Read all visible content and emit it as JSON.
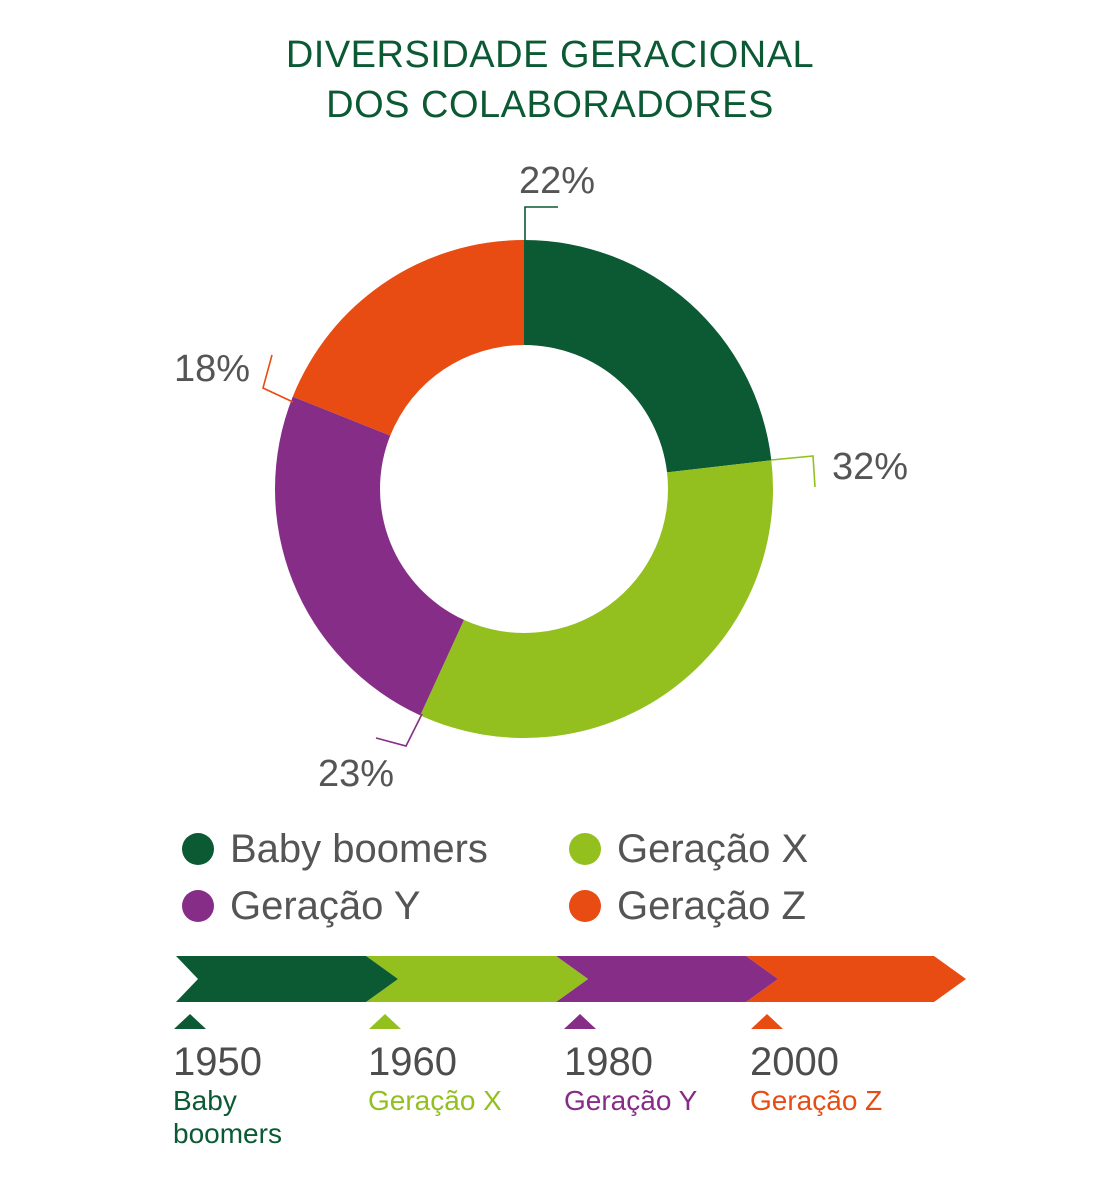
{
  "title": {
    "line1": "DIVERSIDADE GERACIONAL",
    "line2": "DOS COLABORADORES"
  },
  "colors": {
    "title": "#0b5a34",
    "baby_boomers": "#0b5a34",
    "geracao_x": "#93c01f",
    "geracao_y": "#862d87",
    "geracao_z": "#e84c12",
    "text": "#555555"
  },
  "chart_data": {
    "type": "donut",
    "title": "DIVERSIDADE GERACIONAL DOS COLABORADORES",
    "start": "top",
    "direction": "clockwise",
    "slices": [
      {
        "name": "Baby boomers",
        "value": 22,
        "label": "22%",
        "color": "#0b5a34"
      },
      {
        "name": "Geração X",
        "value": 32,
        "label": "32%",
        "color": "#93c01f"
      },
      {
        "name": "Geração Y",
        "value": 23,
        "label": "23%",
        "color": "#862d87"
      },
      {
        "name": "Geração Z",
        "value": 18,
        "label": "18%",
        "color": "#e84c12"
      }
    ]
  },
  "legend": [
    {
      "label": "Baby boomers",
      "color": "#0b5a34"
    },
    {
      "label": "Geração X",
      "color": "#93c01f"
    },
    {
      "label": "Geração Y",
      "color": "#862d87"
    },
    {
      "label": "Geração Z",
      "color": "#e84c12"
    }
  ],
  "timeline": [
    {
      "year": "1950",
      "label": "Baby boomers",
      "color": "#0b5a34"
    },
    {
      "year": "1960",
      "label": "Geração X",
      "color": "#93c01f"
    },
    {
      "year": "1980",
      "label": "Geração Y",
      "color": "#862d87"
    },
    {
      "year": "2000",
      "label": "Geração Z",
      "color": "#e84c12"
    }
  ]
}
